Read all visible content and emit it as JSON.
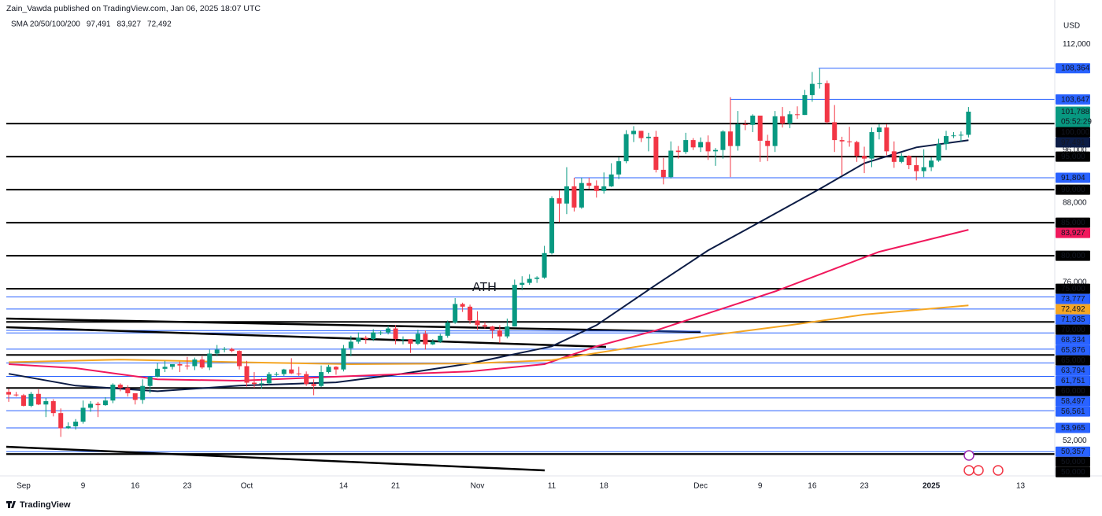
{
  "chart_data": {
    "type": "candlestick",
    "header": "Zain_Vawda published on TradingView.com, Jan 06, 2025 18:07 UTC",
    "indicator": "SMA 20/50/100/200",
    "currency": "USD",
    "annotation": "ATH",
    "brand": "TradingView",
    "up_color": "#089981",
    "down_color": "#f23645",
    "x": [
      -2,
      -1,
      0,
      1,
      2,
      3,
      4,
      5,
      6,
      7,
      8,
      9,
      10,
      11,
      12,
      13,
      14,
      15,
      16,
      17,
      18,
      19,
      20,
      21,
      22,
      23,
      24,
      25,
      26,
      27,
      28,
      29,
      30,
      31,
      32,
      33,
      34,
      35,
      36,
      37,
      38,
      39,
      40,
      41,
      42,
      43,
      44,
      45,
      46,
      47,
      48,
      49,
      50,
      51,
      52,
      53,
      54,
      55,
      56,
      57,
      58,
      59,
      60,
      61,
      62,
      63,
      64,
      65,
      66,
      67,
      68,
      69,
      70,
      71,
      72,
      73,
      74,
      75,
      76,
      77,
      78,
      79,
      80,
      81,
      82,
      83,
      84,
      85,
      86,
      87,
      88,
      89,
      90,
      91,
      92,
      93,
      94,
      95,
      96,
      97,
      98,
      99,
      100,
      101,
      102,
      103,
      104,
      105,
      106,
      107,
      108,
      109,
      110,
      111,
      112,
      113,
      114,
      115,
      116,
      117,
      118,
      119,
      120,
      121,
      122,
      123,
      124,
      125,
      126,
      127
    ],
    "open": [
      59400,
      59000,
      58900,
      57300,
      59100,
      57500,
      58000,
      56200,
      53900,
      54200,
      54900,
      57000,
      57600,
      57400,
      58100,
      60500,
      60000,
      59200,
      58200,
      60300,
      61700,
      62900,
      63200,
      63600,
      63400,
      63300,
      64300,
      63100,
      65200,
      65800,
      65900,
      65600,
      63300,
      60800,
      60600,
      60700,
      62100,
      62100,
      62800,
      62200,
      62100,
      60600,
      60300,
      62400,
      63200,
      62800,
      66000,
      67000,
      67600,
      67400,
      68400,
      68400,
      69000,
      67400,
      67400,
      66700,
      68200,
      66600,
      67000,
      67900,
      69900,
      72700,
      72300,
      70200,
      69500,
      69300,
      68700,
      67800,
      69300,
      75600,
      75900,
      76500,
      76700,
      80400,
      88700,
      87900,
      90500,
      87300,
      91000,
      90600,
      89800,
      90500,
      92300,
      94300,
      98400,
      98900,
      97800,
      98000,
      93000,
      91900,
      95900,
      95700,
      97500,
      96400,
      97200,
      95800,
      96000,
      98800,
      96600,
      99900,
      99800,
      101200,
      97400,
      96600,
      101100,
      100000,
      101400,
      101300,
      104300,
      106000,
      106100,
      100200,
      97500,
      97300,
      97200,
      95100,
      94700,
      98700,
      99400,
      95800,
      94200,
      95100,
      93700,
      92800,
      93400,
      94400,
      96900,
      98100,
      98200,
      98300
    ],
    "high": [
      59900,
      59400,
      59100,
      59400,
      59800,
      58500,
      58300,
      56900,
      54800,
      55300,
      58100,
      58000,
      57900,
      58600,
      60700,
      60700,
      60400,
      59200,
      61300,
      61800,
      63800,
      64100,
      63600,
      64000,
      64700,
      64600,
      64800,
      65800,
      66500,
      66200,
      66100,
      65700,
      64100,
      62400,
      61500,
      62400,
      62400,
      62900,
      64500,
      63200,
      62500,
      61300,
      63400,
      63500,
      63300,
      66500,
      67900,
      68400,
      67900,
      68900,
      68700,
      69400,
      69500,
      67800,
      67400,
      68800,
      68700,
      67400,
      68200,
      70200,
      73600,
      72900,
      72600,
      71600,
      70000,
      69400,
      69500,
      70500,
      76400,
      76900,
      77200,
      76900,
      81500,
      89000,
      89900,
      93400,
      91800,
      91800,
      91800,
      91400,
      92600,
      94000,
      94900,
      99000,
      99600,
      98900,
      98600,
      98900,
      94800,
      97300,
      96600,
      98600,
      97800,
      97900,
      98200,
      96300,
      99000,
      104000,
      101900,
      100500,
      101400,
      101200,
      98300,
      101900,
      102500,
      101900,
      102600,
      105100,
      107800,
      108300,
      106500,
      102800,
      98000,
      99500,
      97400,
      96500,
      99400,
      99900,
      99900,
      97300,
      95500,
      95200,
      94900,
      96100,
      94900,
      97700,
      98900,
      98700,
      98800,
      102500
    ],
    "low": [
      57900,
      58700,
      57200,
      57100,
      57400,
      55600,
      55700,
      52600,
      53800,
      53700,
      54600,
      56400,
      55600,
      57300,
      57700,
      59500,
      58700,
      57500,
      57600,
      59200,
      61600,
      62400,
      62800,
      62400,
      62800,
      62700,
      62900,
      62700,
      64800,
      65400,
      65400,
      62800,
      60200,
      60000,
      59900,
      60500,
      61700,
      61800,
      62100,
      61800,
      60300,
      58900,
      60100,
      62200,
      62000,
      62500,
      64800,
      66700,
      66700,
      67100,
      68000,
      68100,
      66600,
      66600,
      65300,
      66500,
      65800,
      66500,
      66800,
      67600,
      69700,
      71500,
      69700,
      68800,
      69000,
      67500,
      66800,
      67500,
      69300,
      74800,
      75600,
      75900,
      76500,
      80200,
      85100,
      86300,
      86700,
      87100,
      90100,
      88800,
      89400,
      90400,
      91600,
      94000,
      97200,
      97200,
      95800,
      92600,
      90800,
      91700,
      94700,
      95400,
      96000,
      95700,
      94500,
      93600,
      94700,
      91900,
      95900,
      99000,
      98700,
      94200,
      94300,
      95700,
      99400,
      99300,
      100700,
      101300,
      103300,
      105300,
      100000,
      95700,
      92200,
      96500,
      94200,
      92500,
      93400,
      97600,
      95200,
      93300,
      94000,
      93100,
      91400,
      91900,
      92800,
      94200,
      96000,
      97800,
      97300,
      97900
    ],
    "close": [
      59000,
      58900,
      57300,
      59100,
      57500,
      58000,
      56200,
      53900,
      54200,
      54900,
      57000,
      57600,
      57400,
      58100,
      60500,
      60000,
      59200,
      58200,
      60300,
      61700,
      62900,
      63200,
      63600,
      63400,
      63300,
      64300,
      63100,
      65200,
      65800,
      65900,
      65600,
      63300,
      60800,
      60600,
      60700,
      62100,
      62100,
      62800,
      62200,
      62100,
      60600,
      60300,
      62400,
      63200,
      62800,
      66000,
      67000,
      67600,
      67400,
      68400,
      68400,
      69000,
      67400,
      67400,
      66700,
      68200,
      66600,
      67000,
      67900,
      69900,
      72700,
      72300,
      70200,
      69500,
      69300,
      68700,
      67800,
      69300,
      75600,
      75900,
      76500,
      76700,
      80400,
      88700,
      87900,
      90500,
      87300,
      91000,
      90600,
      89800,
      90500,
      92300,
      94300,
      98400,
      98900,
      97800,
      98000,
      93000,
      91900,
      95900,
      95700,
      97500,
      96400,
      97200,
      95800,
      96000,
      98800,
      96600,
      99900,
      99800,
      101200,
      97400,
      96600,
      101100,
      100000,
      101400,
      101300,
      104300,
      106000,
      106100,
      100200,
      97500,
      97300,
      97200,
      95100,
      94700,
      98700,
      99400,
      95800,
      94200,
      95100,
      93700,
      92800,
      93400,
      94400,
      96900,
      98100,
      98200,
      98300,
      101800
    ],
    "sma": [
      {
        "color": "#0c1c45",
        "value_label": "97,491",
        "x": [
          -2,
          7,
          18,
          29,
          42,
          50,
          60,
          71,
          77,
          85,
          92,
          98,
          107,
          113,
          120,
          127
        ],
        "values": [
          62150,
          60350,
          59500,
          60350,
          60850,
          62000,
          63700,
          66300,
          69500,
          75600,
          80800,
          84500,
          90100,
          94000,
          96400,
          97491
        ]
      },
      {
        "color": "#f0185c",
        "value_label": "83,927",
        "x": [
          -2,
          7,
          18,
          29,
          44,
          60,
          70,
          77,
          85,
          92,
          101,
          108,
          115,
          127
        ],
        "values": [
          63600,
          63000,
          61300,
          61100,
          61800,
          62500,
          63600,
          66300,
          68700,
          71300,
          74600,
          77600,
          80600,
          83927
        ]
      },
      {
        "color": "#f5a623",
        "value_label": "72,492",
        "x": [
          -2,
          13,
          29,
          44,
          60,
          71,
          81,
          92,
          103,
          113,
          127
        ],
        "values": [
          63900,
          64300,
          63900,
          63600,
          63700,
          64200,
          66000,
          67900,
          69500,
          71100,
          72492
        ]
      }
    ],
    "price": {
      "value": 101788,
      "label": "101,788",
      "countdown": "05:52:29"
    },
    "levels": [
      {
        "value": 108364,
        "label": "108,364",
        "color": "#2962ff"
      },
      {
        "value": 103647,
        "label": "103,647",
        "color": "#2962ff"
      },
      {
        "value": 100000,
        "label": "100,000",
        "color": "#000000"
      },
      {
        "value": 95000,
        "label": "95,000",
        "color": "#000000"
      },
      {
        "value": 91804,
        "label": "91,804",
        "color": "#2962ff"
      },
      {
        "value": 90000,
        "label": "90,000",
        "color": "#000000"
      },
      {
        "value": 85000,
        "label": "85,000",
        "color": "#000000"
      },
      {
        "value": 80000,
        "label": "80,000",
        "color": "#000000"
      },
      {
        "value": 75000,
        "label": "75,000",
        "color": "#000000"
      },
      {
        "value": 73777,
        "label": "73,777",
        "color": "#2962ff"
      },
      {
        "value": 71935,
        "label": "71,935",
        "color": "#2962ff"
      },
      {
        "value": 70000,
        "label": "70,000",
        "color": "#000000"
      },
      {
        "value": 68334,
        "label": "68,334",
        "color": "#2962ff"
      },
      {
        "value": 65876,
        "label": "65,876",
        "color": "#2962ff"
      },
      {
        "value": 65000,
        "label": "65,000",
        "color": "#000000"
      },
      {
        "value": 63794,
        "label": "63,794",
        "color": "#2962ff"
      },
      {
        "value": 61751,
        "label": "61,751",
        "color": "#2962ff"
      },
      {
        "value": 60000,
        "label": "60,000",
        "color": "#000000"
      },
      {
        "value": 58497,
        "label": "58,497",
        "color": "#2962ff"
      },
      {
        "value": 56561,
        "label": "56,561",
        "color": "#2962ff"
      },
      {
        "value": 53965,
        "label": "53,965",
        "color": "#2962ff"
      },
      {
        "value": 50357,
        "label": "50,357",
        "color": "#2962ff"
      },
      {
        "value": 50000,
        "label": "50,000",
        "color": "#000000"
      },
      {
        "value": 50000,
        "label": "50,000",
        "color": "#000000"
      }
    ],
    "xlim": [
      -3.17,
      138.6
    ],
    "xticks": [
      {
        "value": 0,
        "label": "Sep"
      },
      {
        "value": 8,
        "label": "9"
      },
      {
        "value": 15,
        "label": "16"
      },
      {
        "value": 22,
        "label": "23"
      },
      {
        "value": 30,
        "label": "Oct"
      },
      {
        "value": 43,
        "label": "14"
      },
      {
        "value": 50,
        "label": "21"
      },
      {
        "value": 61,
        "label": "Nov"
      },
      {
        "value": 71,
        "label": "11"
      },
      {
        "value": 78,
        "label": "18"
      },
      {
        "value": 91,
        "label": "Dec"
      },
      {
        "value": 99,
        "label": "9"
      },
      {
        "value": 106,
        "label": "16"
      },
      {
        "value": 113,
        "label": "23"
      },
      {
        "value": 122,
        "label": "2025"
      },
      {
        "value": 134,
        "label": "13"
      }
    ],
    "ylim": [
      46700,
      118690
    ],
    "yticks": [
      {
        "value": 52000,
        "label": "52,000"
      },
      {
        "value": 76000,
        "label": "76,000"
      },
      {
        "value": 88000,
        "label": "88,000"
      },
      {
        "value": 96000,
        "label": "96,000"
      },
      {
        "value": 112000,
        "label": "112,000"
      }
    ]
  }
}
